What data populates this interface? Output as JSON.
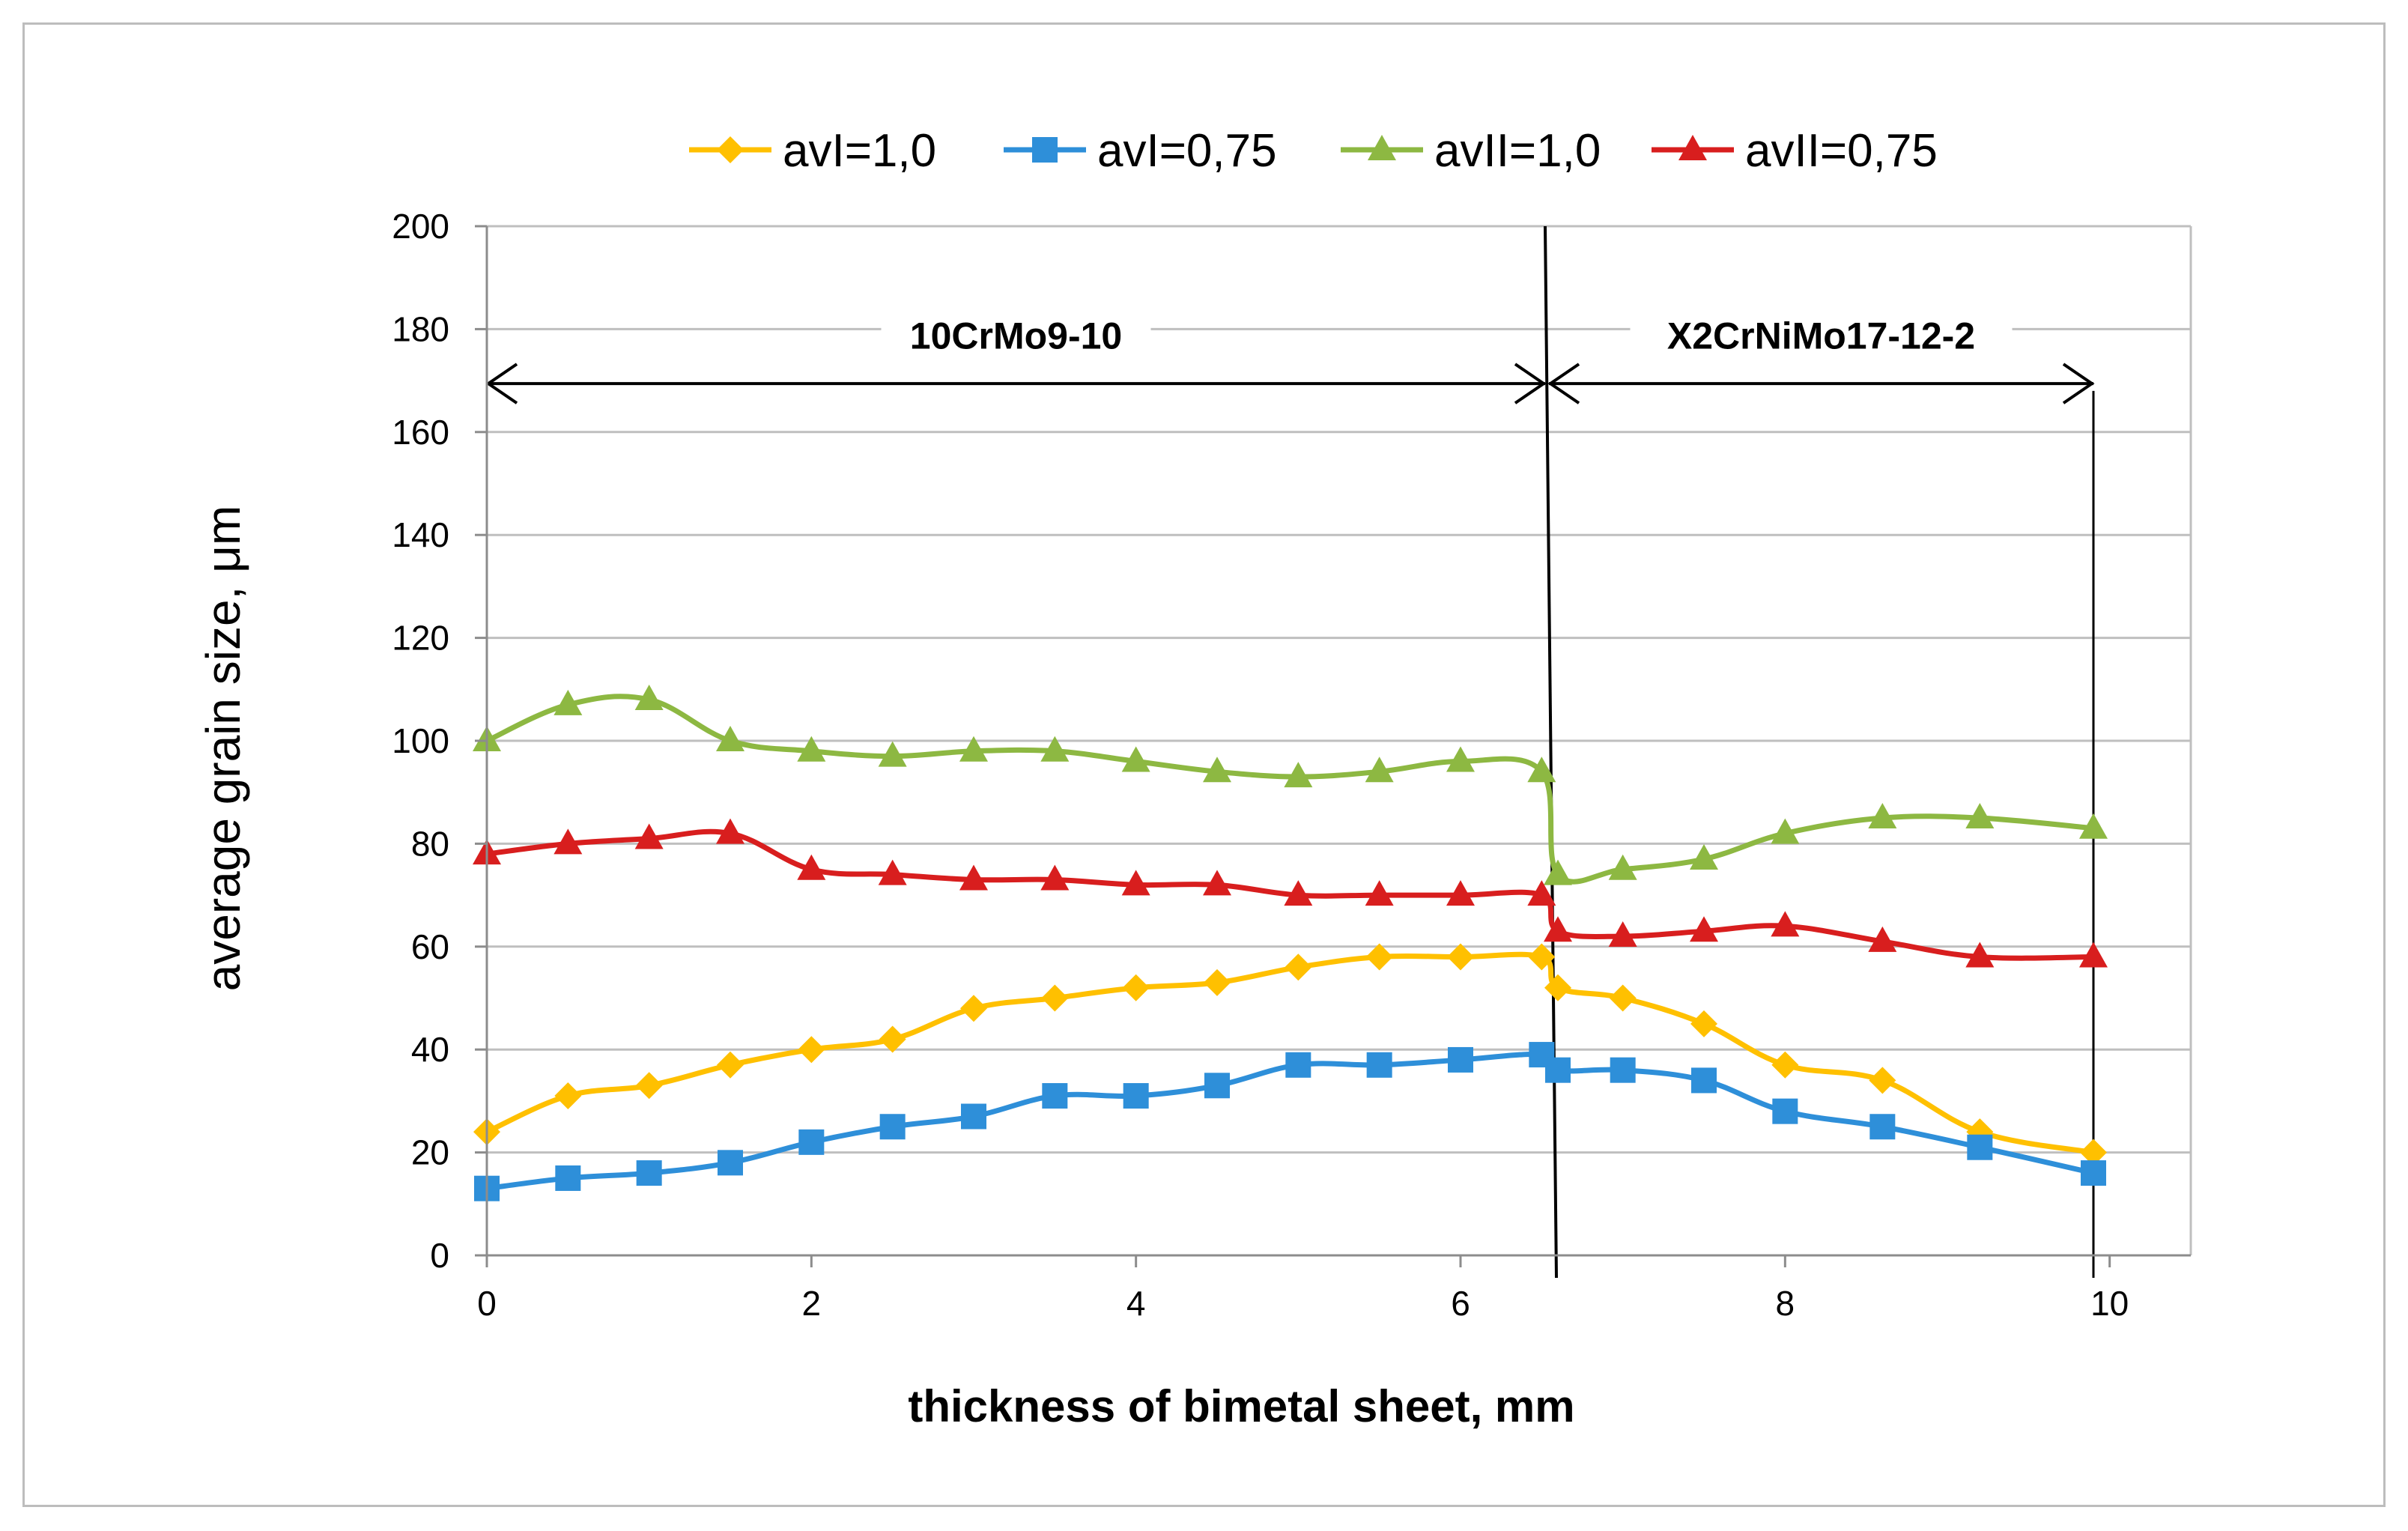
{
  "chart_data": {
    "type": "line",
    "title": "",
    "xlabel": "thickness of bimetal sheet, mm",
    "ylabel": "average grain size,  μm",
    "xlim": [
      0,
      10.5
    ],
    "ylim": [
      0,
      200
    ],
    "xticks": [
      0,
      2,
      4,
      6,
      8,
      10
    ],
    "yticks": [
      0,
      20,
      40,
      60,
      80,
      100,
      120,
      140,
      160,
      180,
      200
    ],
    "grid": "horizontal",
    "legend_position": "top",
    "series": [
      {
        "name": "avI=1,0",
        "color": "#FFC000",
        "marker": "diamond",
        "x": [
          0,
          0.5,
          1,
          1.5,
          2,
          2.5,
          3,
          3.5,
          4,
          4.5,
          5,
          5.5,
          6,
          6.5,
          6.6,
          7,
          7.5,
          8,
          8.6,
          9.2,
          9.9
        ],
        "y": [
          24,
          31,
          33,
          37,
          40,
          42,
          48,
          50,
          52,
          53,
          56,
          58,
          58,
          58,
          52,
          50,
          45,
          37,
          34,
          24,
          20
        ]
      },
      {
        "name": "avI=0,75",
        "color": "#2E8FD9",
        "marker": "square",
        "x": [
          0,
          0.5,
          1,
          1.5,
          2,
          2.5,
          3,
          3.5,
          4,
          4.5,
          5,
          5.5,
          6,
          6.5,
          6.6,
          7,
          7.5,
          8,
          8.6,
          9.2,
          9.9
        ],
        "y": [
          13,
          15,
          16,
          18,
          22,
          25,
          27,
          31,
          31,
          33,
          37,
          37,
          38,
          39,
          36,
          36,
          34,
          28,
          25,
          21,
          16
        ]
      },
      {
        "name": "avII=1,0",
        "color": "#8DB842",
        "marker": "triangle",
        "x": [
          0,
          0.5,
          1,
          1.5,
          2,
          2.5,
          3,
          3.5,
          4,
          4.5,
          5,
          5.5,
          6,
          6.5,
          6.6,
          7,
          7.5,
          8,
          8.6,
          9.2,
          9.9
        ],
        "y": [
          100,
          107,
          108,
          100,
          98,
          97,
          98,
          98,
          96,
          94,
          93,
          94,
          96,
          94,
          74,
          75,
          77,
          82,
          85,
          85,
          83
        ]
      },
      {
        "name": "avII=0,75",
        "color": "#D81E1E",
        "marker": "triangle",
        "x": [
          0,
          0.5,
          1,
          1.5,
          2,
          2.5,
          3,
          3.5,
          4,
          4.5,
          5,
          5.5,
          6,
          6.5,
          6.6,
          7,
          7.5,
          8,
          8.6,
          9.2,
          9.9
        ],
        "y": [
          78,
          80,
          81,
          82,
          75,
          74,
          73,
          73,
          72,
          72,
          70,
          70,
          70,
          70,
          63,
          62,
          63,
          64,
          61,
          58,
          58
        ]
      }
    ],
    "annotations": [
      {
        "text": "10CrMo9-10",
        "x_from": 0,
        "x_to": 6.5,
        "y": 170
      },
      {
        "text": "X2CrNiMo17-12-2",
        "x_from": 6.5,
        "x_to": 9.9,
        "y": 170
      }
    ],
    "dividers": [
      6.55,
      9.9
    ]
  }
}
